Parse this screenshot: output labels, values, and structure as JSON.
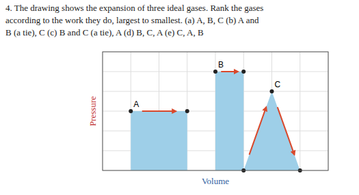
{
  "chart_data": {
    "type": "area",
    "title": "4.  The drawing shows the expansion of three ideal gases. Rank the gases\naccording to the work they do, largest to smallest. (a) A, B, C (b) A and\nB (a tie), C (c) B and C (a tie), A (d) B, C, A (e) C, A, B",
    "x_label": "Volume",
    "y_label": "Pressure",
    "xlim": [
      0,
      8
    ],
    "ylim": [
      0,
      6
    ],
    "xticks": [
      0,
      1,
      2,
      3,
      4,
      5,
      6,
      7,
      8
    ],
    "yticks": [
      0,
      1,
      2,
      3,
      4,
      5,
      6
    ],
    "grid": true,
    "tick_labels": false,
    "series": [
      {
        "name": "A",
        "color": "#9ecfe8",
        "x": [
          1,
          3
        ],
        "values": [
          3,
          3
        ]
      },
      {
        "name": "B",
        "color": "#9ecfe8",
        "x": [
          4,
          5
        ],
        "values": [
          5,
          5
        ]
      },
      {
        "name": "C",
        "color": "#9ecfe8",
        "x": [
          5,
          6,
          7
        ],
        "values": [
          0,
          4,
          0
        ]
      }
    ]
  }
}
